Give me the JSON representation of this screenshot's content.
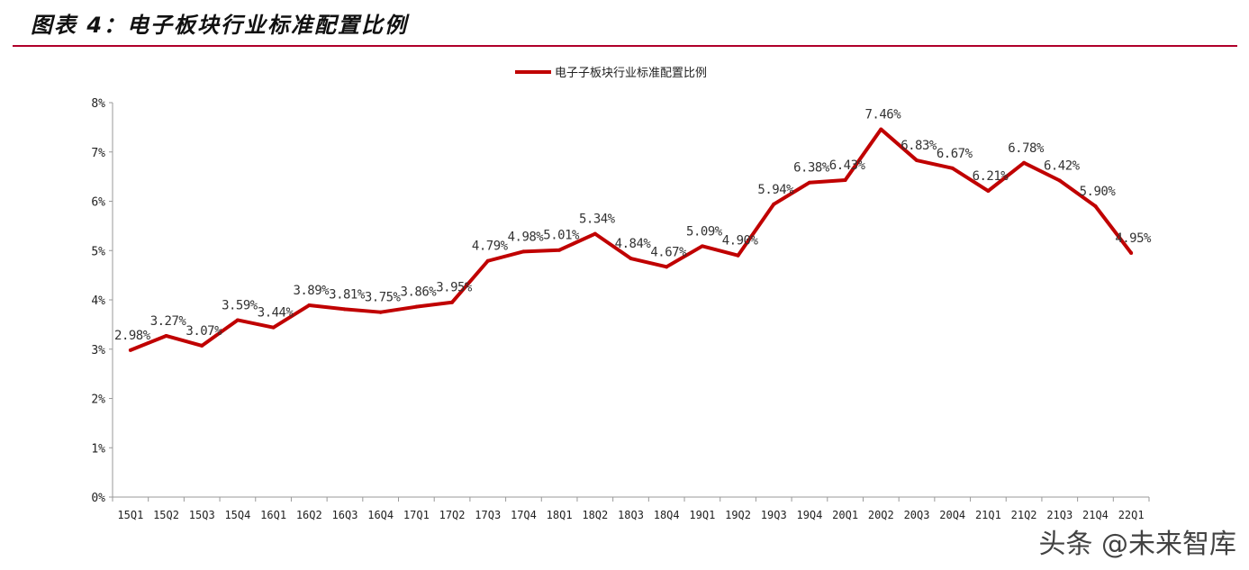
{
  "title": "图表 4：电子板块行业标准配置比例",
  "watermark": "头条 @未来智库",
  "chart_data": {
    "type": "line",
    "title": "",
    "xlabel": "",
    "ylabel": "",
    "ylim": [
      0,
      8
    ],
    "yticks": [
      "0%",
      "1%",
      "2%",
      "3%",
      "4%",
      "5%",
      "6%",
      "7%",
      "8%"
    ],
    "legend": {
      "position": "top-center",
      "entries": [
        "电子子板块行业标准配置比例"
      ]
    },
    "categories": [
      "15Q1",
      "15Q2",
      "15Q3",
      "15Q4",
      "16Q1",
      "16Q2",
      "16Q3",
      "16Q4",
      "17Q1",
      "17Q2",
      "17Q3",
      "17Q4",
      "18Q1",
      "18Q2",
      "18Q3",
      "18Q4",
      "19Q1",
      "19Q2",
      "19Q3",
      "19Q4",
      "20Q1",
      "20Q2",
      "20Q3",
      "20Q4",
      "21Q1",
      "21Q2",
      "21Q3",
      "21Q4",
      "22Q1"
    ],
    "series": [
      {
        "name": "电子板块行业标准配置比例",
        "color": "#c00000",
        "values": [
          2.98,
          3.27,
          3.07,
          3.59,
          3.44,
          3.89,
          3.81,
          3.75,
          3.86,
          3.95,
          4.79,
          4.98,
          5.01,
          5.34,
          4.84,
          4.67,
          5.09,
          4.9,
          5.94,
          6.38,
          6.43,
          7.46,
          6.83,
          6.67,
          6.21,
          6.78,
          6.42,
          5.9,
          4.95
        ],
        "labels": [
          "2.98%",
          "3.27%",
          "3.07%",
          "3.59%",
          "3.44%",
          "3.89%",
          "3.81%",
          "3.75%",
          "3.86%",
          "3.95%",
          "4.79%",
          "4.98%",
          "5.01%",
          "5.34%",
          "4.84%",
          "4.67%",
          "5.09%",
          "4.90%",
          "5.94%",
          "6.38%",
          "6.43%",
          "7.46%",
          "6.83%",
          "6.67%",
          "6.21%",
          "6.78%",
          "6.42%",
          "5.90%",
          "4.95%"
        ]
      }
    ]
  }
}
